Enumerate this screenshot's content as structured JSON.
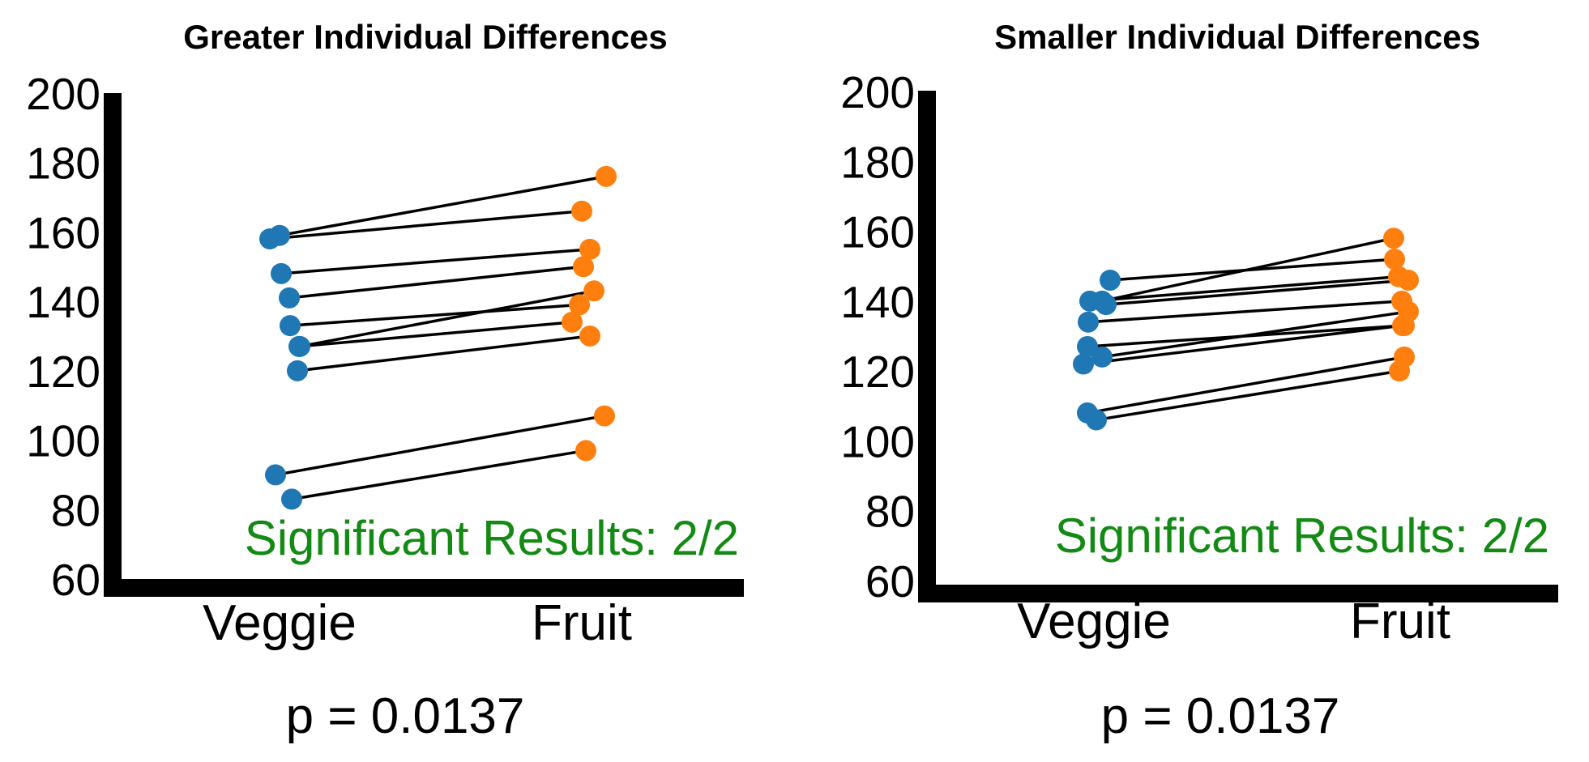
{
  "colors": {
    "veggie": "#1f77b4",
    "fruit": "#ff7f0e",
    "line": "#000000",
    "significant": "#138a13"
  },
  "chart_data": [
    {
      "type": "scatter",
      "title": "Greater Individual Differences",
      "categories": [
        "Veggie",
        "Fruit"
      ],
      "ylim": [
        60,
        200
      ],
      "yticks": [
        "60",
        "80",
        "100",
        "120",
        "140",
        "160",
        "180",
        "200"
      ],
      "annotation": "Significant Results: 2/2",
      "pvalue_label": "p = 0.0137",
      "pairs": [
        {
          "veggie": 158,
          "fruit": 166
        },
        {
          "veggie": 159,
          "fruit": 176
        },
        {
          "veggie": 148,
          "fruit": 155
        },
        {
          "veggie": 141,
          "fruit": 150
        },
        {
          "veggie": 133,
          "fruit": 139
        },
        {
          "veggie": 127,
          "fruit": 143
        },
        {
          "veggie": 127,
          "fruit": 134
        },
        {
          "veggie": 120,
          "fruit": 130
        },
        {
          "veggie": 90,
          "fruit": 107
        },
        {
          "veggie": 83,
          "fruit": 97
        }
      ]
    },
    {
      "type": "scatter",
      "title": "Smaller Individual Differences",
      "categories": [
        "Veggie",
        "Fruit"
      ],
      "ylim": [
        60,
        200
      ],
      "yticks": [
        "60",
        "80",
        "100",
        "120",
        "140",
        "160",
        "180",
        "200"
      ],
      "annotation": "Significant Results: 2/2",
      "pvalue_label": "p = 0.0137",
      "pairs": [
        {
          "veggie": 146,
          "fruit": 152
        },
        {
          "veggie": 140,
          "fruit": 158
        },
        {
          "veggie": 140,
          "fruit": 147
        },
        {
          "veggie": 139,
          "fruit": 146
        },
        {
          "veggie": 134,
          "fruit": 140
        },
        {
          "veggie": 127,
          "fruit": 133
        },
        {
          "veggie": 124,
          "fruit": 137
        },
        {
          "veggie": 122,
          "fruit": 133
        },
        {
          "veggie": 108,
          "fruit": 124
        },
        {
          "veggie": 106,
          "fruit": 120
        }
      ]
    }
  ]
}
